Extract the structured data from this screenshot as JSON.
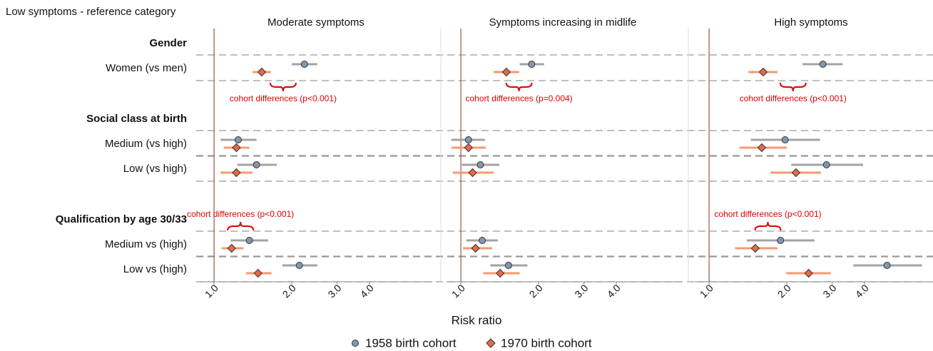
{
  "chart_data": {
    "type": "forest",
    "reference_note": "Low symptoms - reference category",
    "xlabel": "Risk ratio",
    "xscale": "log",
    "xlim": [
      0.88,
      7.0
    ],
    "xticks": [
      {
        "value": 1,
        "label": "1.0"
      },
      {
        "value": 2,
        "label": "2.0"
      },
      {
        "value": 3,
        "label": "3.0"
      },
      {
        "value": 4,
        "label": "4.0"
      }
    ],
    "reference_line": 1,
    "groups": [
      {
        "title": "Gender",
        "rows": [
          "Women (vs men)"
        ]
      },
      {
        "title": "Social class at birth",
        "rows": [
          "Medium (vs high)",
          "Low (vs high)"
        ]
      },
      {
        "title": "Qualification by age 30/33",
        "rows": [
          "Medium vs (high)",
          "Low vs (high)"
        ]
      }
    ],
    "series": [
      {
        "name": "1958 birth cohort",
        "color": "#8197ae",
        "ci_color": "#a3a3a3",
        "marker": "circle"
      },
      {
        "name": "1970 birth cohort",
        "color": "#e8694a",
        "ci_color": "#f59a72",
        "marker": "diamond"
      }
    ],
    "panels": [
      {
        "title": "Moderate symptoms",
        "series": [
          {
            "values": [
              2.24,
              1.24,
              1.46,
              1.37,
              2.14
            ],
            "lower": [
              2.0,
              1.06,
              1.23,
              1.16,
              1.84
            ],
            "upper": [
              2.51,
              1.46,
              1.75,
              1.62,
              2.51
            ]
          },
          {
            "values": [
              1.53,
              1.22,
              1.22,
              1.17,
              1.48
            ],
            "lower": [
              1.41,
              1.09,
              1.06,
              1.07,
              1.33
            ],
            "upper": [
              1.66,
              1.37,
              1.41,
              1.3,
              1.67
            ]
          }
        ],
        "annotations": [
          {
            "text": "cohort differences (p<0.001)",
            "row": 0,
            "side": "below"
          },
          {
            "text": "cohort differences (p<0.001)",
            "row": 3,
            "side": "above"
          }
        ]
      },
      {
        "title": "Symptoms increasing in midlife",
        "series": [
          {
            "values": [
              1.88,
              1.07,
              1.19,
              1.21,
              1.53
            ],
            "lower": [
              1.69,
              0.92,
              1.01,
              1.05,
              1.3
            ],
            "upper": [
              2.1,
              1.24,
              1.41,
              1.39,
              1.81
            ]
          },
          {
            "values": [
              1.5,
              1.07,
              1.11,
              1.14,
              1.42
            ],
            "lower": [
              1.34,
              0.92,
              0.93,
              1.02,
              1.22
            ],
            "upper": [
              1.68,
              1.25,
              1.34,
              1.32,
              1.69
            ]
          }
        ],
        "annotations": [
          {
            "text": "cohort differences (p=0.004)",
            "row": 0,
            "side": "below"
          }
        ]
      },
      {
        "title": "High symptoms",
        "series": [
          {
            "values": [
              2.76,
              1.97,
              2.85,
              1.89,
              4.89
            ],
            "lower": [
              2.3,
              1.45,
              2.08,
              1.4,
              3.62
            ],
            "upper": [
              3.29,
              2.69,
              3.95,
              2.56,
              6.67
            ]
          },
          {
            "values": [
              1.62,
              1.6,
              2.17,
              1.51,
              2.43
            ],
            "lower": [
              1.42,
              1.31,
              1.73,
              1.26,
              1.99
            ],
            "upper": [
              1.84,
              2.0,
              2.71,
              1.84,
              2.96
            ]
          }
        ],
        "annotations": [
          {
            "text": "cohort differences (p<0.001)",
            "row": 0,
            "side": "below"
          },
          {
            "text": "cohort differences (p<0.001)",
            "row": 3,
            "side": "above"
          }
        ]
      }
    ]
  }
}
